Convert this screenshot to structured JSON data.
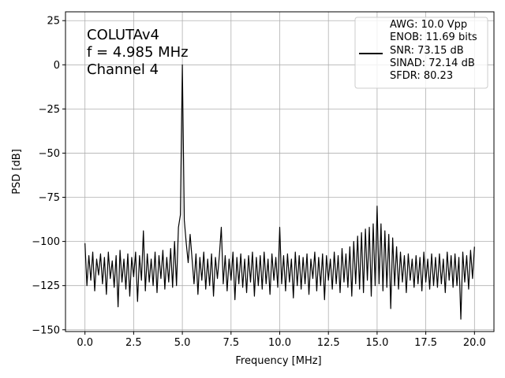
{
  "chart_data": {
    "type": "line",
    "xlabel": "Frequency [MHz]",
    "ylabel": "PSD [dB]",
    "annotations": [
      "COLUTAv4",
      "f = 4.985 MHz",
      "Channel 4"
    ],
    "xlim": [
      -1,
      21
    ],
    "ylim": [
      -151,
      30
    ],
    "xticks": [
      {
        "value": 0,
        "label": "0.0"
      },
      {
        "value": 2.5,
        "label": "2.5"
      },
      {
        "value": 5,
        "label": "5.0"
      },
      {
        "value": 7.5,
        "label": "7.5"
      },
      {
        "value": 10,
        "label": "10.0"
      },
      {
        "value": 12.5,
        "label": "12.5"
      },
      {
        "value": 15,
        "label": "15.0"
      },
      {
        "value": 17.5,
        "label": "17.5"
      },
      {
        "value": 20,
        "label": "20.0"
      }
    ],
    "yticks": [
      {
        "value": -150,
        "label": "−150"
      },
      {
        "value": -125,
        "label": "−125"
      },
      {
        "value": -100,
        "label": "−100"
      },
      {
        "value": -75,
        "label": "−75"
      },
      {
        "value": -50,
        "label": "−50"
      },
      {
        "value": -25,
        "label": "−25"
      },
      0,
      25
    ],
    "grid": true,
    "legend": "upper right",
    "x": [
      0,
      0.1,
      0.2,
      0.3,
      0.4,
      0.5,
      0.6,
      0.7,
      0.8,
      0.9,
      1,
      1.1,
      1.2,
      1.3,
      1.4,
      1.5,
      1.6,
      1.7,
      1.8,
      1.9,
      2,
      2.1,
      2.2,
      2.3,
      2.4,
      2.5,
      2.6,
      2.7,
      2.8,
      2.9,
      3,
      3.1,
      3.2,
      3.3,
      3.4,
      3.5,
      3.6,
      3.7,
      3.8,
      3.9,
      4,
      4.1,
      4.2,
      4.3,
      4.4,
      4.5,
      4.6,
      4.7,
      4.8,
      4.9,
      5,
      5.1,
      5.2,
      5.3,
      5.4,
      5.5,
      5.6,
      5.7,
      5.8,
      5.9,
      6,
      6.1,
      6.2,
      6.3,
      6.4,
      6.5,
      6.6,
      6.7,
      6.8,
      6.9,
      7,
      7.1,
      7.2,
      7.3,
      7.4,
      7.5,
      7.6,
      7.7,
      7.8,
      7.9,
      8,
      8.1,
      8.2,
      8.3,
      8.4,
      8.5,
      8.6,
      8.7,
      8.8,
      8.9,
      9,
      9.1,
      9.2,
      9.3,
      9.4,
      9.5,
      9.6,
      9.7,
      9.8,
      9.9,
      10,
      10.1,
      10.2,
      10.3,
      10.4,
      10.5,
      10.6,
      10.7,
      10.8,
      10.9,
      11,
      11.1,
      11.2,
      11.3,
      11.4,
      11.5,
      11.6,
      11.7,
      11.8,
      11.9,
      12,
      12.1,
      12.2,
      12.3,
      12.4,
      12.5,
      12.6,
      12.7,
      12.8,
      12.9,
      13,
      13.1,
      13.2,
      13.3,
      13.4,
      13.5,
      13.6,
      13.7,
      13.8,
      13.9,
      14,
      14.1,
      14.2,
      14.3,
      14.4,
      14.5,
      14.6,
      14.7,
      14.8,
      14.9,
      15,
      15.1,
      15.2,
      15.3,
      15.4,
      15.5,
      15.6,
      15.7,
      15.8,
      15.9,
      16,
      16.1,
      16.2,
      16.3,
      16.4,
      16.5,
      16.6,
      16.7,
      16.8,
      16.9,
      17,
      17.1,
      17.2,
      17.3,
      17.4,
      17.5,
      17.6,
      17.7,
      17.8,
      17.9,
      18,
      18.1,
      18.2,
      18.3,
      18.4,
      18.5,
      18.6,
      18.7,
      18.8,
      18.9,
      19,
      19.1,
      19.2,
      19.3,
      19.4,
      19.5,
      19.6,
      19.7,
      19.8,
      19.9,
      20
    ],
    "series": [
      {
        "name": "AWG: 10.0 Vpp\nENOB: 11.69 bits\nSNR: 73.15 dB\nSINAD: 72.14 dB\nSFDR: 80.23",
        "color": "#000000",
        "values": [
          -101,
          -125,
          -108,
          -122,
          -106,
          -128,
          -110,
          -119,
          -107,
          -124,
          -109,
          -130,
          -106,
          -121,
          -111,
          -126,
          -108,
          -137,
          -105,
          -123,
          -110,
          -127,
          -107,
          -131,
          -109,
          -120,
          -106,
          -134,
          -108,
          -122,
          -94,
          -128,
          -107,
          -123,
          -110,
          -125,
          -106,
          -129,
          -108,
          -121,
          -105,
          -127,
          -109,
          -123,
          -104,
          -126,
          -100,
          -125,
          -92,
          -85,
          0,
          -88,
          -101,
          -112,
          -96,
          -110,
          -124,
          -107,
          -130,
          -109,
          -122,
          -106,
          -127,
          -110,
          -125,
          -107,
          -131,
          -109,
          -121,
          -108,
          -92,
          -124,
          -108,
          -128,
          -110,
          -122,
          -106,
          -133,
          -109,
          -124,
          -107,
          -126,
          -110,
          -129,
          -108,
          -123,
          -106,
          -131,
          -109,
          -125,
          -108,
          -127,
          -106,
          -124,
          -110,
          -130,
          -107,
          -122,
          -109,
          -126,
          -92,
          -124,
          -108,
          -128,
          -107,
          -123,
          -110,
          -132,
          -106,
          -125,
          -108,
          -127,
          -109,
          -124,
          -107,
          -130,
          -110,
          -121,
          -106,
          -128,
          -109,
          -125,
          -107,
          -133,
          -108,
          -122,
          -110,
          -127,
          -106,
          -124,
          -108,
          -129,
          -104,
          -123,
          -107,
          -126,
          -103,
          -131,
          -100,
          -124,
          -97,
          -127,
          -95,
          -129,
          -93,
          -122,
          -92,
          -131,
          -90,
          -125,
          -80,
          -124,
          -90,
          -128,
          -94,
          -126,
          -96,
          -138,
          -98,
          -125,
          -103,
          -127,
          -106,
          -123,
          -108,
          -129,
          -107,
          -122,
          -110,
          -126,
          -108,
          -124,
          -109,
          -128,
          -106,
          -123,
          -110,
          -127,
          -107,
          -125,
          -109,
          -126,
          -107,
          -124,
          -110,
          -129,
          -106,
          -122,
          -108,
          -126,
          -107,
          -125,
          -109,
          -144,
          -106,
          -123,
          -108,
          -127,
          -105,
          -121,
          -103
        ]
      }
    ]
  }
}
